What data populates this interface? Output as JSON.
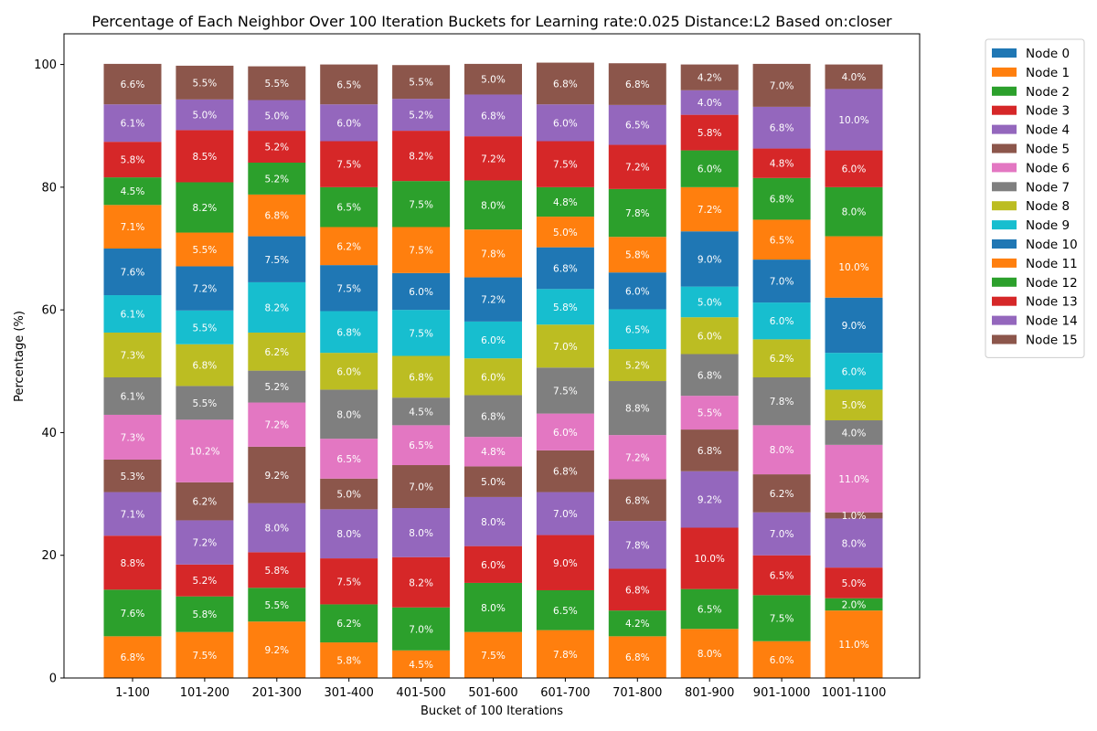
{
  "chart_data": {
    "type": "bar",
    "stacked": true,
    "title": "Percentage of Each Neighbor Over 100 Iteration Buckets for Learning rate:0.025 Distance:L2 Based on:closer",
    "xlabel": "Bucket of 100 Iterations",
    "ylabel": "Percentage (%)",
    "ylim": [
      0,
      105
    ],
    "yticks": [
      0,
      20,
      40,
      60,
      80,
      100
    ],
    "grid": false,
    "legend_position": "outside-right",
    "categories": [
      "1-100",
      "101-200",
      "201-300",
      "301-400",
      "401-500",
      "501-600",
      "601-700",
      "701-800",
      "801-900",
      "901-1000",
      "1001-1100"
    ],
    "series": [
      {
        "name": "Node 0",
        "color": "#1f77b4",
        "values": [
          0,
          0,
          0,
          0,
          0,
          0,
          0,
          0,
          0,
          0,
          0
        ]
      },
      {
        "name": "Node 1",
        "color": "#ff7f0e",
        "values": [
          6.8,
          7.5,
          9.2,
          5.8,
          4.5,
          7.5,
          7.8,
          6.8,
          8.0,
          6.0,
          11.0
        ]
      },
      {
        "name": "Node 2",
        "color": "#2ca02c",
        "values": [
          7.6,
          5.8,
          5.5,
          6.2,
          7.0,
          8.0,
          6.5,
          4.2,
          6.5,
          7.5,
          2.0
        ]
      },
      {
        "name": "Node 3",
        "color": "#d62728",
        "values": [
          8.8,
          5.2,
          5.8,
          7.5,
          8.2,
          6.0,
          9.0,
          6.8,
          10.0,
          6.5,
          5.0
        ]
      },
      {
        "name": "Node 4",
        "color": "#9467bd",
        "values": [
          7.1,
          7.2,
          8.0,
          8.0,
          8.0,
          8.0,
          7.0,
          7.8,
          9.2,
          7.0,
          8.0
        ]
      },
      {
        "name": "Node 5",
        "color": "#8c564b",
        "values": [
          5.3,
          6.2,
          9.2,
          5.0,
          7.0,
          5.0,
          6.8,
          6.8,
          6.8,
          6.2,
          1.0
        ]
      },
      {
        "name": "Node 6",
        "color": "#e377c2",
        "values": [
          7.3,
          10.2,
          7.2,
          6.5,
          6.5,
          4.8,
          6.0,
          7.2,
          5.5,
          8.0,
          11.0
        ]
      },
      {
        "name": "Node 7",
        "color": "#7f7f7f",
        "values": [
          6.1,
          5.5,
          5.2,
          8.0,
          4.5,
          6.8,
          7.5,
          8.8,
          6.8,
          7.8,
          4.0
        ]
      },
      {
        "name": "Node 8",
        "color": "#bcbd22",
        "values": [
          7.3,
          6.8,
          6.2,
          6.0,
          6.8,
          6.0,
          7.0,
          5.2,
          6.0,
          6.2,
          5.0
        ]
      },
      {
        "name": "Node 9",
        "color": "#17becf",
        "values": [
          6.1,
          5.5,
          8.2,
          6.8,
          7.5,
          6.0,
          5.8,
          6.5,
          5.0,
          6.0,
          6.0
        ]
      },
      {
        "name": "Node 10",
        "color": "#1f77b4",
        "values": [
          7.6,
          7.2,
          7.5,
          7.5,
          6.0,
          7.2,
          6.8,
          6.0,
          9.0,
          7.0,
          9.0
        ]
      },
      {
        "name": "Node 11",
        "color": "#ff7f0e",
        "values": [
          7.1,
          5.5,
          6.8,
          6.2,
          7.5,
          7.8,
          5.0,
          5.8,
          7.2,
          6.5,
          10.0
        ]
      },
      {
        "name": "Node 12",
        "color": "#2ca02c",
        "values": [
          4.5,
          8.2,
          5.2,
          6.5,
          7.5,
          8.0,
          4.8,
          7.8,
          6.0,
          6.8,
          8.0
        ]
      },
      {
        "name": "Node 13",
        "color": "#d62728",
        "values": [
          5.8,
          8.5,
          5.2,
          7.5,
          8.2,
          7.2,
          7.5,
          7.2,
          5.8,
          4.8,
          6.0
        ]
      },
      {
        "name": "Node 14",
        "color": "#9467bd",
        "values": [
          6.1,
          5.0,
          5.0,
          6.0,
          5.2,
          6.8,
          6.0,
          6.5,
          4.0,
          6.8,
          10.0
        ]
      },
      {
        "name": "Node 15",
        "color": "#8c564b",
        "values": [
          6.6,
          5.5,
          5.5,
          6.5,
          5.5,
          5.0,
          6.8,
          6.8,
          4.2,
          7.0,
          4.0
        ]
      }
    ]
  }
}
